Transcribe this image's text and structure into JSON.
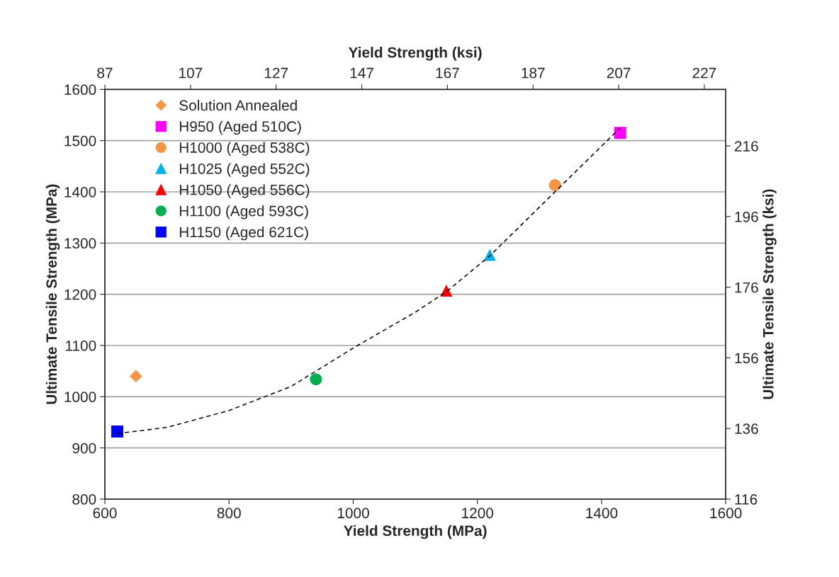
{
  "chart_data": {
    "type": "scatter",
    "xlabel": "Yield Strength (MPa)",
    "ylabel": "Ultimate Tensile Strength (MPa)",
    "x2label": "Yield Strength (ksi)",
    "y2label": "Ultimate Tensile Strength (ksi)",
    "xlim": [
      600,
      1600
    ],
    "xticks": [
      600,
      800,
      1000,
      1200,
      1400,
      1600
    ],
    "ylim": [
      800,
      1600
    ],
    "yticks": [
      800,
      900,
      1000,
      1100,
      1200,
      1300,
      1400,
      1500,
      1600
    ],
    "x2lim": [
      87,
      232
    ],
    "x2ticks": [
      87,
      107,
      127,
      147,
      167,
      187,
      207,
      227
    ],
    "y2lim": [
      116,
      232
    ],
    "y2ticks": [
      116,
      136,
      156,
      176,
      196,
      216
    ],
    "grid": "y",
    "legend": "top left",
    "series": [
      {
        "name": "Solution Annealed",
        "color": "#f79646",
        "marker": "diamond",
        "x": [
          650
        ],
        "values": [
          1040
        ]
      },
      {
        "name": "H950 (Aged 510C)",
        "color": "#ff00ff",
        "marker": "square",
        "x": [
          1430
        ],
        "values": [
          1515
        ]
      },
      {
        "name": "H1000 (Aged 538C)",
        "color": "#f79646",
        "marker": "circle",
        "x": [
          1325
        ],
        "values": [
          1413
        ]
      },
      {
        "name": "H1025 (Aged 552C)",
        "color": "#00b0f0",
        "marker": "triangle",
        "x": [
          1220
        ],
        "values": [
          1277
        ]
      },
      {
        "name": "H1050 (Aged 556C)",
        "color": "#ff0000",
        "marker": "triangle",
        "x": [
          1150
        ],
        "values": [
          1207
        ]
      },
      {
        "name": "H1100 (Aged 593C)",
        "color": "#00b050",
        "marker": "circle",
        "x": [
          940
        ],
        "values": [
          1034
        ]
      },
      {
        "name": "H1150 (Aged 621C)",
        "color": "#0000ff",
        "marker": "square",
        "x": [
          620
        ],
        "values": [
          932
        ]
      },
      {
        "type": "line",
        "color": "#000000",
        "line_style": "dashed",
        "marker": "none",
        "x": [
          620,
          700,
          800,
          900,
          1000,
          1100,
          1150,
          1220,
          1325,
          1430
        ],
        "values": [
          928,
          940,
          973,
          1020,
          1095,
          1165,
          1205,
          1275,
          1400,
          1525
        ]
      }
    ]
  }
}
